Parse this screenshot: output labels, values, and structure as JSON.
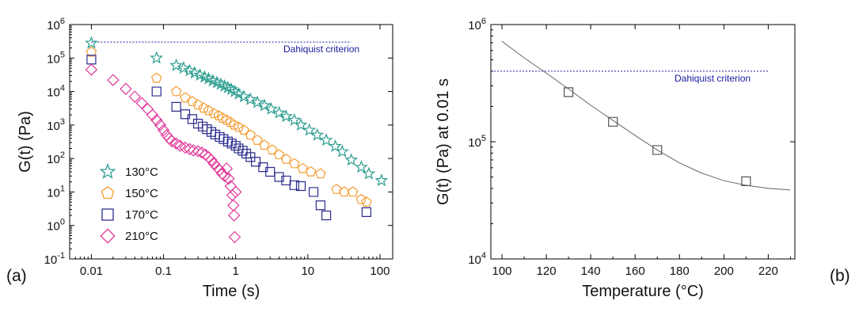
{
  "chart_data": [
    {
      "type": "scatter",
      "panel_label": "(a)",
      "xlabel": "Time (s)",
      "ylabel": "G(t) (Pa)",
      "xscale": "log",
      "yscale": "log",
      "xlim": [
        0.005,
        150
      ],
      "ylim": [
        0.1,
        1000000
      ],
      "xticks": [
        0.01,
        0.1,
        1,
        10,
        100
      ],
      "xtick_labels": [
        "0.01",
        "0.1",
        "1",
        "10",
        "100"
      ],
      "yticks": [
        0.1,
        1,
        10,
        100,
        1000,
        10000,
        100000,
        1000000
      ],
      "ytick_labels": [
        [
          "10",
          "-1"
        ],
        [
          "10",
          "0"
        ],
        [
          "10",
          "1"
        ],
        [
          "10",
          "2"
        ],
        [
          "10",
          "3"
        ],
        [
          "10",
          "4"
        ],
        [
          "10",
          "5"
        ],
        [
          "10",
          "6"
        ]
      ],
      "legend_position": "bottom-left",
      "annotation": {
        "text": "Dahiquist criterion",
        "y": 300000,
        "x_range": [
          0.01,
          40
        ],
        "line_color": "#1a1aa0"
      },
      "series": [
        {
          "name": "130°C",
          "marker": "star",
          "color": "#2a9d8f",
          "points": [
            [
              0.01,
              280000
            ],
            [
              0.08,
              100000
            ],
            [
              0.15,
              60000
            ],
            [
              0.19,
              50000
            ],
            [
              0.23,
              42000
            ],
            [
              0.27,
              36000
            ],
            [
              0.32,
              31000
            ],
            [
              0.37,
              27000
            ],
            [
              0.42,
              24000
            ],
            [
              0.48,
              21000
            ],
            [
              0.55,
              18500
            ],
            [
              0.62,
              16500
            ],
            [
              0.7,
              14500
            ],
            [
              0.78,
              13000
            ],
            [
              0.87,
              11500
            ],
            [
              0.97,
              10000
            ],
            [
              1.1,
              8500
            ],
            [
              1.3,
              7000
            ],
            [
              1.6,
              5800
            ],
            [
              2.0,
              4700
            ],
            [
              2.5,
              3800
            ],
            [
              3.1,
              3000
            ],
            [
              4.0,
              2300
            ],
            [
              5.0,
              1800
            ],
            [
              6.5,
              1400
            ],
            [
              8.0,
              1000
            ],
            [
              10.5,
              700
            ],
            [
              13.5,
              500
            ],
            [
              18,
              350
            ],
            [
              24,
              230
            ],
            [
              30,
              160
            ],
            [
              40,
              90
            ],
            [
              55,
              55
            ],
            [
              70,
              35
            ],
            [
              105,
              22
            ]
          ]
        },
        {
          "name": "150°C",
          "marker": "pentagon",
          "color": "#f39c32",
          "points": [
            [
              0.01,
              150000
            ],
            [
              0.08,
              25000
            ],
            [
              0.15,
              10000
            ],
            [
              0.2,
              6500
            ],
            [
              0.25,
              5000
            ],
            [
              0.3,
              4000
            ],
            [
              0.36,
              3200
            ],
            [
              0.42,
              2700
            ],
            [
              0.5,
              2200
            ],
            [
              0.58,
              1900
            ],
            [
              0.66,
              1600
            ],
            [
              0.75,
              1400
            ],
            [
              0.85,
              1200
            ],
            [
              0.95,
              1000
            ],
            [
              1.1,
              850
            ],
            [
              1.3,
              700
            ],
            [
              1.6,
              500
            ],
            [
              2.0,
              350
            ],
            [
              2.5,
              250
            ],
            [
              3.2,
              180
            ],
            [
              4.0,
              130
            ],
            [
              5.0,
              95
            ],
            [
              6.5,
              70
            ],
            [
              8.5,
              50
            ],
            [
              11,
              40
            ],
            [
              15,
              35
            ],
            [
              25,
              12
            ],
            [
              32,
              10
            ],
            [
              42,
              10
            ],
            [
              55,
              6
            ],
            [
              65,
              5
            ]
          ]
        },
        {
          "name": "170°C",
          "marker": "square",
          "color": "#2b2b8f",
          "points": [
            [
              0.01,
              90000
            ],
            [
              0.08,
              10000
            ],
            [
              0.15,
              3500
            ],
            [
              0.2,
              2100
            ],
            [
              0.25,
              1500
            ],
            [
              0.3,
              1100
            ],
            [
              0.35,
              900
            ],
            [
              0.4,
              750
            ],
            [
              0.46,
              620
            ],
            [
              0.52,
              520
            ],
            [
              0.6,
              440
            ],
            [
              0.68,
              380
            ],
            [
              0.78,
              320
            ],
            [
              0.88,
              280
            ],
            [
              1.0,
              240
            ],
            [
              1.1,
              200
            ],
            [
              1.25,
              170
            ],
            [
              1.4,
              140
            ],
            [
              1.6,
              110
            ],
            [
              1.9,
              80
            ],
            [
              2.4,
              55
            ],
            [
              3.0,
              40
            ],
            [
              4.0,
              28
            ],
            [
              5.0,
              22
            ],
            [
              6.5,
              16
            ],
            [
              8.0,
              15
            ],
            [
              12,
              10
            ],
            [
              15,
              4
            ],
            [
              18,
              2
            ],
            [
              65,
              2.5
            ]
          ]
        },
        {
          "name": "210°C",
          "marker": "diamond",
          "color": "#e0389a",
          "points": [
            [
              0.01,
              45000
            ],
            [
              0.02,
              22000
            ],
            [
              0.03,
              12000
            ],
            [
              0.04,
              7000
            ],
            [
              0.05,
              4500
            ],
            [
              0.06,
              3000
            ],
            [
              0.07,
              2000
            ],
            [
              0.08,
              1400
            ],
            [
              0.09,
              1000
            ],
            [
              0.1,
              700
            ],
            [
              0.11,
              500
            ],
            [
              0.12,
              400
            ],
            [
              0.13,
              330
            ],
            [
              0.15,
              280
            ],
            [
              0.17,
              240
            ],
            [
              0.2,
              210
            ],
            [
              0.23,
              190
            ],
            [
              0.26,
              175
            ],
            [
              0.3,
              165
            ],
            [
              0.34,
              150
            ],
            [
              0.38,
              130
            ],
            [
              0.42,
              110
            ],
            [
              0.46,
              90
            ],
            [
              0.5,
              70
            ],
            [
              0.55,
              55
            ],
            [
              0.6,
              45
            ],
            [
              0.65,
              35
            ],
            [
              0.7,
              30
            ],
            [
              0.75,
              50
            ],
            [
              0.8,
              25
            ],
            [
              0.85,
              15
            ],
            [
              0.9,
              8
            ],
            [
              0.93,
              4
            ],
            [
              0.95,
              2
            ],
            [
              0.97,
              0.45
            ],
            [
              1.0,
              10
            ]
          ]
        }
      ]
    },
    {
      "type": "scatter",
      "panel_label": "(b)",
      "xlabel": "Temperature (°C)",
      "ylabel": "G(t) (Pa) at 0.01 s",
      "xscale": "linear",
      "yscale": "log",
      "xlim": [
        95,
        232
      ],
      "ylim": [
        10000,
        1000000
      ],
      "xticks": [
        100,
        120,
        140,
        160,
        180,
        200,
        220
      ],
      "xtick_labels": [
        "100",
        "120",
        "140",
        "160",
        "180",
        "200",
        "220"
      ],
      "yticks": [
        10000,
        100000,
        1000000
      ],
      "ytick_labels": [
        [
          "10",
          "4"
        ],
        [
          "10",
          "5"
        ],
        [
          "10",
          "6"
        ]
      ],
      "annotation": {
        "text": "Dahiquist criterion",
        "y": 400000,
        "x_range": [
          95,
          232
        ],
        "line_color": "#1a1aa0"
      },
      "series": [
        {
          "name": "",
          "marker": "square",
          "color": "#555555",
          "points": [
            [
              130,
              265000
            ],
            [
              150,
              148000
            ],
            [
              170,
              85000
            ],
            [
              210,
              46000
            ]
          ]
        }
      ],
      "fit_curve": [
        [
          100,
          720000
        ],
        [
          110,
          520000
        ],
        [
          120,
          385000
        ],
        [
          130,
          282000
        ],
        [
          140,
          205000
        ],
        [
          150,
          152000
        ],
        [
          160,
          113000
        ],
        [
          170,
          85000
        ],
        [
          180,
          66000
        ],
        [
          190,
          54000
        ],
        [
          200,
          46500
        ],
        [
          210,
          42500
        ],
        [
          220,
          40000
        ],
        [
          230,
          38800
        ]
      ]
    }
  ]
}
